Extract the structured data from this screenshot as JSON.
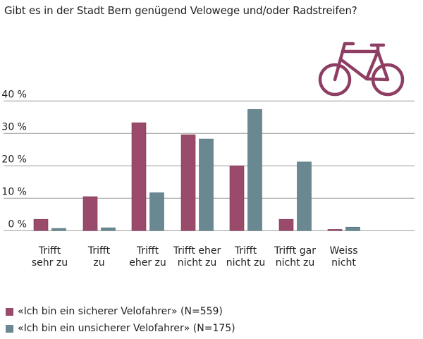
{
  "chart_data": {
    "type": "bar",
    "title": "Gibt es in der Stadt Bern genügend Velowege und/oder Radstreifen?",
    "categories": [
      [
        "Trifft",
        "sehr zu"
      ],
      [
        "Trifft",
        "zu"
      ],
      [
        "Trifft",
        "eher zu"
      ],
      [
        "Trifft eher",
        "nicht zu"
      ],
      [
        "Trifft",
        "nicht zu"
      ],
      [
        "Trifft gar",
        "nicht zu"
      ],
      [
        "Weiss",
        "nicht"
      ]
    ],
    "series": [
      {
        "name": "«Ich bin ein sicherer Velofahrer» (N=559)",
        "color": "#9a4a6a",
        "values": [
          3.5,
          10.5,
          33.3,
          29.6,
          20.0,
          3.5,
          0.4
        ]
      },
      {
        "name": "«Ich bin ein unsicherer Velofahrer» (N=175)",
        "color": "#6a8891",
        "values": [
          0.7,
          0.9,
          11.7,
          28.3,
          37.4,
          21.2,
          1.1
        ]
      }
    ],
    "yticks": [
      "0 %",
      "10 %",
      "20 %",
      "30 %",
      "40 %"
    ],
    "ylim": [
      0,
      40
    ],
    "grid": true,
    "legend": "bottom-left",
    "icon": "bicycle-icon"
  }
}
